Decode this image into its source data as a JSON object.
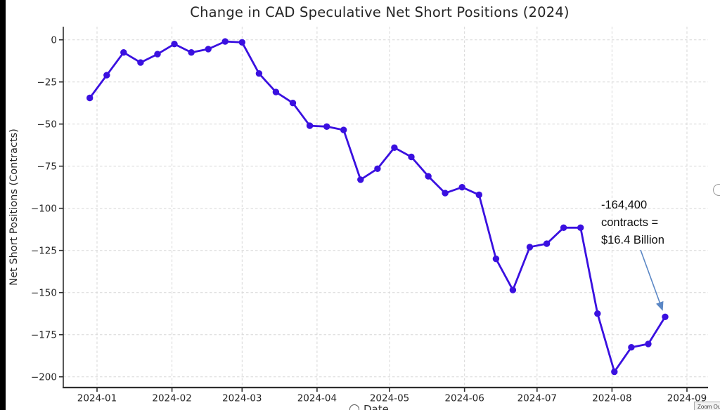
{
  "chart_data": {
    "type": "line",
    "title": "Change in CAD Speculative Net Short Positions (2024)",
    "xlabel": "Date",
    "ylabel": "Net Short Positions (Contracts)",
    "x": [
      "2023-12-29",
      "2024-01-05",
      "2024-01-12",
      "2024-01-19",
      "2024-01-26",
      "2024-02-02",
      "2024-02-09",
      "2024-02-16",
      "2024-02-23",
      "2024-03-01",
      "2024-03-08",
      "2024-03-15",
      "2024-03-22",
      "2024-03-29",
      "2024-04-05",
      "2024-04-12",
      "2024-04-19",
      "2024-04-26",
      "2024-05-03",
      "2024-05-10",
      "2024-05-17",
      "2024-05-24",
      "2024-05-31",
      "2024-06-07",
      "2024-06-14",
      "2024-06-21",
      "2024-06-28",
      "2024-07-05",
      "2024-07-12",
      "2024-07-19",
      "2024-07-26",
      "2024-08-02",
      "2024-08-09",
      "2024-08-16",
      "2024-08-23"
    ],
    "values": [
      -34.5,
      -21,
      -7.5,
      -13.5,
      -8.5,
      -2.5,
      -7.5,
      -5.5,
      -1,
      -1.5,
      -20,
      -31,
      -37.5,
      -51,
      -51.5,
      -53.5,
      -83,
      -76.5,
      -64,
      -69.5,
      -81,
      -91,
      -87.5,
      -92,
      -130,
      -148.5,
      -123,
      -121,
      -111.5,
      -111.5,
      -162.5,
      -197,
      -182.5,
      -180.5,
      -164.4
    ],
    "x_tick_labels": [
      "2024-01",
      "2024-02",
      "2024-03",
      "2024-04",
      "2024-05",
      "2024-06",
      "2024-07",
      "2024-08",
      "2024-09"
    ],
    "y_tick_values": [
      0,
      -25,
      -50,
      -75,
      -100,
      -125,
      -150,
      -175,
      -200
    ],
    "y_tick_labels": [
      "0",
      "−25",
      "−50",
      "−75",
      "−100",
      "−125",
      "−150",
      "−175",
      "−200"
    ],
    "ylim": [
      -206,
      8
    ],
    "xlim": [
      "2023-12-18",
      "2024-09-09"
    ],
    "grid": true,
    "legend": "none",
    "line_color": "#3a10e0",
    "marker": "circle"
  },
  "annotation": {
    "lines": [
      "-164,400",
      "contracts =",
      "$16.4 Billion"
    ],
    "arrow_color": "#5b87c5",
    "points_to_value": -164.4
  },
  "overlay": {
    "zoom_out_label": "Zoom Out"
  },
  "colors": {
    "line": "#3a10e0",
    "grid": "#d7d7d7",
    "axis": "#2e2e2e",
    "text": "#262626",
    "background": "#ffffff",
    "left_edge_bar": "#000000"
  }
}
